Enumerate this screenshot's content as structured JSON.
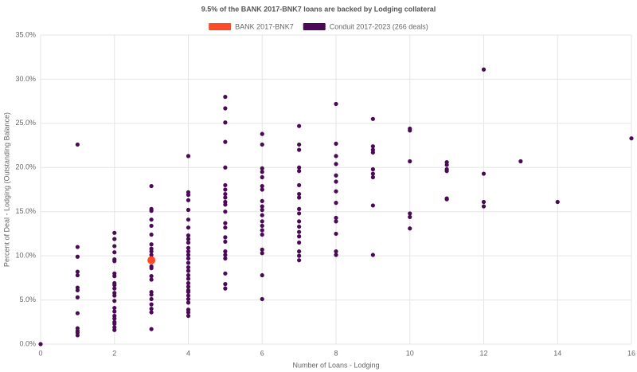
{
  "chart_data": {
    "type": "scatter",
    "title": "9.5% of the BANK 2017-BNK7 loans are backed by Lodging collateral",
    "x_label": "Number of Loans - Lodging",
    "y_label": "Percent of Deal - Lodging (Outstanding Balance)",
    "xlim": [
      0,
      16
    ],
    "xticks": [
      0,
      2,
      4,
      6,
      8,
      10,
      12,
      14,
      16
    ],
    "ylim": [
      0,
      35
    ],
    "yticks": [
      {
        "value": 0,
        "label": "0.0%"
      },
      {
        "value": 5,
        "label": "5.0%"
      },
      {
        "value": 10,
        "label": "10.0%"
      },
      {
        "value": 15,
        "label": "15.0%"
      },
      {
        "value": 20,
        "label": "20.0%"
      },
      {
        "value": 25,
        "label": "25.0%"
      },
      {
        "value": 30,
        "label": "30.0%"
      },
      {
        "value": 35,
        "label": "35.0%"
      }
    ],
    "grid": true,
    "series": [
      {
        "name": "BANK 2017-BNK7",
        "color": "#ff4a2a",
        "x": [
          3
        ],
        "values": [
          9.5
        ]
      },
      {
        "name": "Conduit 2017-2023 (266 deals)",
        "color": "#4b0a55",
        "x": [
          0,
          1,
          1,
          1,
          1,
          1,
          1,
          1,
          1,
          1,
          1,
          1,
          1,
          1,
          2,
          2,
          2,
          2,
          2,
          2,
          2,
          2,
          2,
          2,
          2,
          2,
          2,
          2,
          2,
          2,
          2,
          2,
          2,
          2,
          2,
          2,
          3,
          3,
          3,
          3,
          3,
          3,
          3,
          3,
          3,
          3,
          3,
          3,
          3,
          3,
          3,
          3,
          3,
          3,
          3,
          3,
          3,
          3,
          4,
          4,
          4,
          4,
          4,
          4,
          4,
          4,
          4,
          4,
          4,
          4,
          4,
          4,
          4,
          4,
          4,
          4,
          4,
          4,
          4,
          4,
          4,
          4,
          4,
          4,
          4,
          4,
          4,
          5,
          5,
          5,
          5,
          5,
          5,
          5,
          5,
          5,
          5,
          5,
          5,
          5,
          5,
          5,
          5,
          5,
          5,
          5,
          5,
          5,
          5,
          6,
          6,
          6,
          6,
          6,
          6,
          6,
          6,
          6,
          6,
          6,
          6,
          6,
          6,
          6,
          6,
          6,
          6,
          6,
          7,
          7,
          7,
          7,
          7,
          7,
          7,
          7,
          7,
          7,
          7,
          7,
          7,
          7,
          7,
          7,
          7,
          7,
          8,
          8,
          8,
          8,
          8,
          8,
          8,
          8,
          8,
          8,
          8,
          8,
          8,
          9,
          9,
          9,
          9,
          9,
          9,
          9,
          9,
          9,
          10,
          10,
          10,
          10,
          10,
          10,
          11,
          11,
          11,
          11,
          11,
          11,
          12,
          12,
          12,
          12,
          13,
          14,
          16
        ],
        "values": [
          0.0,
          22.6,
          11.0,
          9.9,
          8.2,
          7.8,
          6.4,
          6.1,
          5.3,
          3.5,
          1.8,
          1.5,
          1.3,
          1.0,
          12.6,
          11.9,
          11.1,
          10.4,
          9.6,
          9.4,
          8.0,
          7.7,
          6.9,
          6.7,
          6.3,
          5.8,
          5.5,
          4.9,
          4.1,
          3.7,
          3.2,
          2.9,
          2.5,
          2.3,
          1.9,
          1.6,
          17.9,
          15.3,
          15.1,
          14.1,
          13.4,
          12.4,
          11.3,
          10.8,
          10.5,
          10.1,
          9.7,
          8.8,
          8.6,
          7.7,
          7.3,
          5.9,
          5.6,
          5.1,
          4.5,
          4.0,
          3.6,
          1.7,
          21.3,
          17.2,
          16.9,
          16.3,
          15.2,
          14.1,
          13.2,
          12.3,
          11.9,
          11.5,
          10.9,
          10.5,
          10.1,
          9.7,
          9.2,
          8.7,
          8.3,
          7.8,
          7.4,
          6.9,
          6.5,
          6.1,
          5.9,
          5.5,
          5.1,
          4.7,
          3.9,
          3.6,
          3.2,
          28.0,
          26.7,
          25.1,
          22.9,
          20.0,
          18.0,
          17.5,
          17.0,
          16.6,
          16.1,
          15.8,
          15.0,
          13.7,
          13.2,
          12.1,
          11.6,
          10.5,
          10.1,
          9.7,
          8.0,
          6.8,
          6.3,
          23.8,
          22.6,
          19.9,
          19.5,
          18.9,
          17.9,
          17.5,
          16.2,
          15.6,
          15.2,
          14.6,
          13.9,
          13.4,
          12.9,
          12.4,
          10.7,
          10.3,
          7.8,
          5.1,
          24.7,
          22.6,
          22.0,
          20.0,
          19.6,
          18.0,
          17.0,
          16.6,
          15.3,
          14.8,
          13.9,
          13.3,
          12.7,
          12.2,
          11.5,
          10.5,
          10.0,
          9.5,
          27.2,
          22.7,
          21.3,
          20.4,
          19.1,
          18.4,
          17.3,
          16.0,
          14.3,
          13.9,
          12.5,
          10.5,
          10.1,
          25.5,
          22.4,
          22.0,
          21.7,
          19.8,
          19.3,
          18.9,
          15.7,
          10.1,
          24.4,
          24.2,
          20.7,
          14.8,
          14.4,
          13.1,
          20.6,
          20.3,
          19.8,
          19.6,
          16.5,
          16.4,
          31.1,
          19.3,
          16.1,
          15.6,
          20.7,
          16.1,
          23.3
        ]
      }
    ]
  }
}
